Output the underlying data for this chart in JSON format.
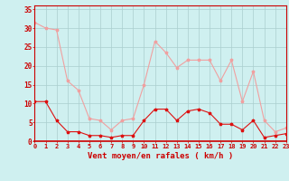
{
  "hours": [
    0,
    1,
    2,
    3,
    4,
    5,
    6,
    7,
    8,
    9,
    10,
    11,
    12,
    13,
    14,
    15,
    16,
    17,
    18,
    19,
    20,
    21,
    22,
    23
  ],
  "wind_avg": [
    10.5,
    10.5,
    5.5,
    2.5,
    2.5,
    1.5,
    1.5,
    1.0,
    1.5,
    1.5,
    5.5,
    8.5,
    8.5,
    5.5,
    8.0,
    8.5,
    7.5,
    4.5,
    4.5,
    3.0,
    5.5,
    1.0,
    1.5,
    2.0
  ],
  "wind_gust": [
    31.5,
    30.0,
    29.5,
    16.0,
    13.5,
    6.0,
    5.5,
    3.0,
    5.5,
    6.0,
    15.0,
    26.5,
    23.5,
    19.5,
    21.5,
    21.5,
    21.5,
    16.0,
    21.5,
    10.5,
    18.5,
    5.5,
    2.5,
    3.5
  ],
  "avg_color": "#dd1111",
  "gust_color": "#f0a0a0",
  "bg_color": "#cff0f0",
  "grid_color": "#aacece",
  "axis_color": "#cc0000",
  "xlabel": "Vent moyen/en rafales ( km/h )",
  "ylabel_ticks": [
    0,
    5,
    10,
    15,
    20,
    25,
    30,
    35
  ],
  "xlim": [
    0,
    23
  ],
  "ylim": [
    0,
    36
  ]
}
